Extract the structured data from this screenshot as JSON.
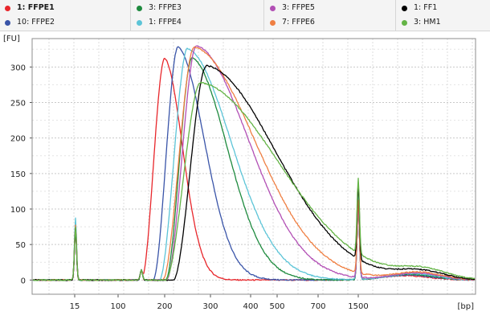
{
  "chart_data": {
    "type": "line",
    "ylabel": "[FU]",
    "xlabel": "[bp]",
    "ylim": [
      -20,
      340
    ],
    "yticks": [
      0,
      50,
      100,
      150,
      200,
      250,
      300
    ],
    "xticks": [
      "15",
      "100",
      "200",
      "300",
      "400",
      "500",
      "700",
      "1500"
    ],
    "grid": true,
    "legend_position": "top",
    "series": [
      {
        "name": "1: FFPE1",
        "color": "#e8262b",
        "peak_bp": 200,
        "peak_fu": 312
      },
      {
        "name": "10: FFPE2",
        "color": "#3954a8",
        "peak_bp": 225,
        "peak_fu": 328
      },
      {
        "name": "3: FFPE3",
        "color": "#1e8a3e",
        "peak_bp": 255,
        "peak_fu": 313
      },
      {
        "name": "1: FFPE4",
        "color": "#5cc4d7",
        "peak_bp": 245,
        "peak_fu": 326
      },
      {
        "name": "3: FFPE5",
        "color": "#b24fb5",
        "peak_bp": 265,
        "peak_fu": 330
      },
      {
        "name": "7: FFPE6",
        "color": "#ef7f42",
        "peak_bp": 260,
        "peak_fu": 328
      },
      {
        "name": "1: FF1",
        "color": "#000000",
        "peak_bp": 290,
        "peak_fu": 302
      },
      {
        "name": "3: HM1",
        "color": "#64b446",
        "peak_bp": 275,
        "peak_fu": 278
      }
    ],
    "marker_peaks": [
      {
        "bp": "15",
        "values": {
          "1: FFPE1": 72,
          "1: FFPE4": 88
        }
      },
      {
        "bp": "1500",
        "values": {
          "1: FFPE1": 108,
          "1: FFPE4": 122
        }
      }
    ]
  }
}
